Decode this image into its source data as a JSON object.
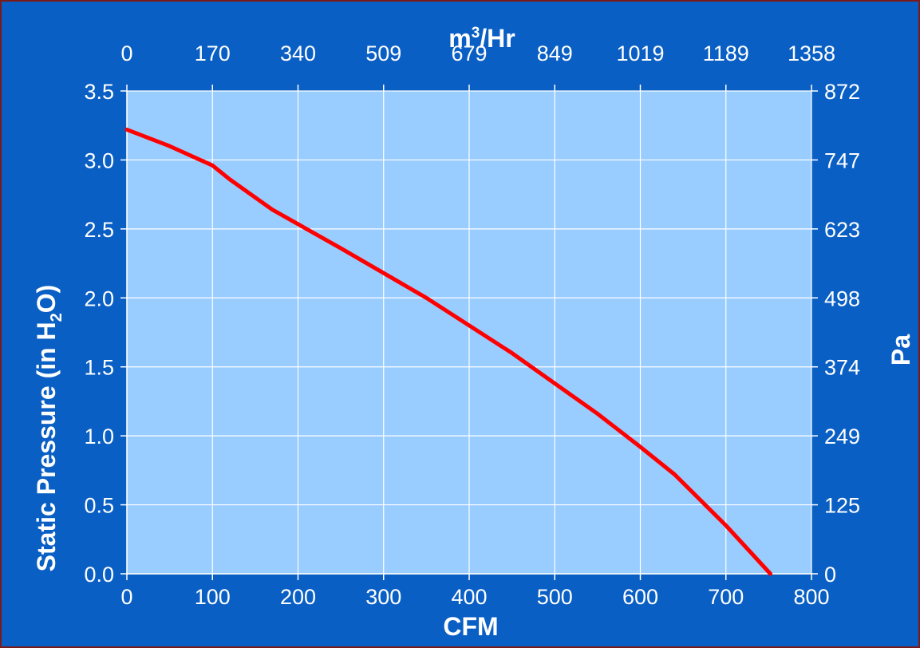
{
  "chart_data": {
    "type": "line",
    "title": "",
    "xlabel": "CFM",
    "ylabel_main": "Static Pressure (in H",
    "ylabel_sub": "2",
    "ylabel_tail": "O)",
    "secondary_xlabel_main": "m",
    "secondary_xlabel_sup": "3",
    "secondary_xlabel_tail": "/Hr",
    "secondary_ylabel": "Pa",
    "xlim": [
      0,
      800
    ],
    "ylim": [
      0,
      3.5
    ],
    "x_ticks": [
      "0",
      "100",
      "200",
      "300",
      "400",
      "500",
      "600",
      "700",
      "800"
    ],
    "y_ticks": [
      "0.0",
      "0.5",
      "1.0",
      "1.5",
      "2.0",
      "2.5",
      "3.0",
      "3.5"
    ],
    "secondary_x_ticks": [
      "0",
      "170",
      "340",
      "509",
      "679",
      "849",
      "1019",
      "1189",
      "1358"
    ],
    "secondary_y_ticks": [
      "0",
      "125",
      "249",
      "374",
      "498",
      "623",
      "747",
      "872"
    ],
    "grid": true,
    "series": [
      {
        "color": "#ff0000",
        "x": [
          0,
          50,
          100,
          120,
          170,
          250,
          350,
          450,
          550,
          600,
          640,
          700,
          752
        ],
        "y": [
          3.22,
          3.1,
          2.96,
          2.86,
          2.64,
          2.36,
          2.0,
          1.6,
          1.16,
          0.92,
          0.72,
          0.35,
          0.0
        ]
      }
    ],
    "colors": {
      "background": "#0a5fc4",
      "plot_area": "#99ccff",
      "grid": "#ffffff",
      "text": "#ffffff"
    }
  }
}
